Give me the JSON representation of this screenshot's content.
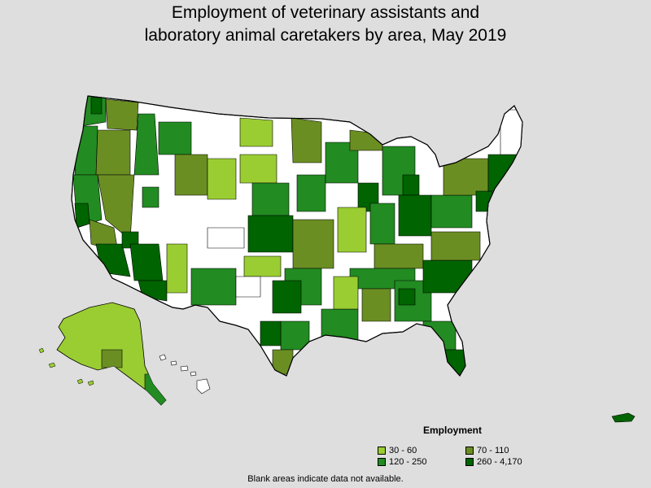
{
  "title_line1": "Employment of veterinary assistants and",
  "title_line2": "laboratory animal caretakers by area, May 2019",
  "legend": {
    "title": "Employment",
    "items": [
      {
        "label": "30 - 60",
        "color": "#9acd32"
      },
      {
        "label": "70 - 110",
        "color": "#6b8e23"
      },
      {
        "label": "120 - 250",
        "color": "#228b22"
      },
      {
        "label": "260 - 4,170",
        "color": "#006400"
      }
    ]
  },
  "footnote": "Blank areas indicate data not available.",
  "colors": {
    "background": "#dedede",
    "no_data": "#ffffff",
    "border": "#000000"
  }
}
